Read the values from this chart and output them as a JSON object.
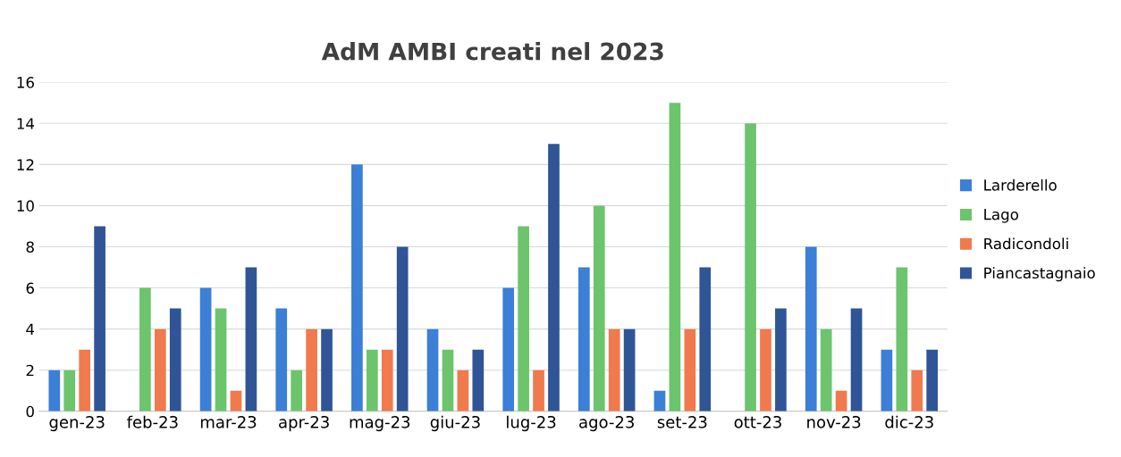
{
  "chart_data": {
    "type": "bar",
    "title": "AdM AMBI creati nel 2023",
    "categories": [
      "gen-23",
      "feb-23",
      "mar-23",
      "apr-23",
      "mag-23",
      "giu-23",
      "lug-23",
      "ago-23",
      "set-23",
      "ott-23",
      "nov-23",
      "dic-23"
    ],
    "series": [
      {
        "name": "Larderello",
        "color": "#3b7fd6",
        "values": [
          2,
          0,
          6,
          5,
          12,
          4,
          6,
          7,
          1,
          0,
          8,
          3
        ]
      },
      {
        "name": "Lago",
        "color": "#6cc46c",
        "values": [
          2,
          6,
          5,
          2,
          3,
          3,
          9,
          10,
          15,
          14,
          4,
          7
        ]
      },
      {
        "name": "Radicondoli",
        "color": "#f07a4e",
        "values": [
          3,
          4,
          1,
          4,
          3,
          2,
          2,
          4,
          4,
          4,
          1,
          2
        ]
      },
      {
        "name": "Piancastagnaio",
        "color": "#2f5597",
        "values": [
          9,
          5,
          7,
          4,
          8,
          3,
          13,
          4,
          7,
          5,
          5,
          3
        ]
      }
    ],
    "ylim": [
      0,
      16
    ],
    "yticks": [
      0,
      2,
      4,
      6,
      8,
      10,
      12,
      14,
      16
    ],
    "grid": "y",
    "legend": "right"
  }
}
